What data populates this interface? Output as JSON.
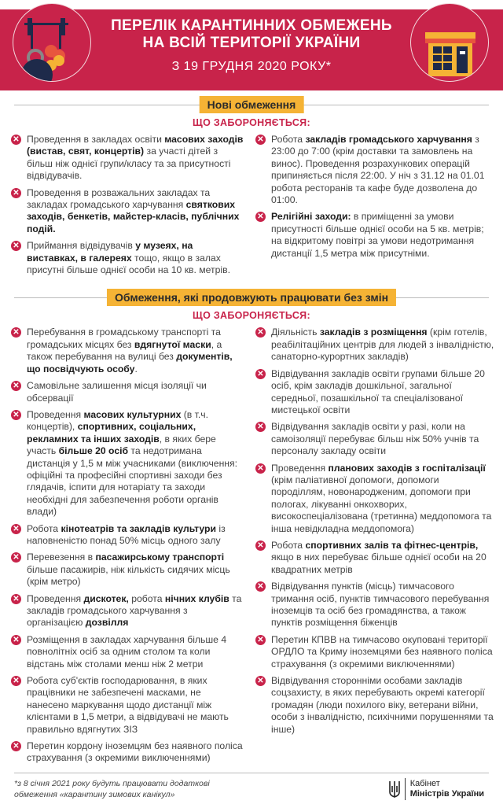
{
  "header": {
    "title_line1": "ПЕРЕЛІК КАРАНТИННИХ ОБМЕЖЕНЬ",
    "title_line2": "НА ВСІЙ ТЕРИТОРІЇ УКРАЇНИ",
    "subtitle": "З 19 ГРУДНЯ 2020 РОКУ*",
    "accent": "#c8234a",
    "highlight": "#f5b335"
  },
  "new_section": {
    "label": "Нові обмеження",
    "sub": "ЩО ЗАБОРОНЯЄТЬСЯ:",
    "left": [
      [
        {
          "t": "Проведення в закладах освіти "
        },
        {
          "t": "масових заходів (вистав, свят, концертів)",
          "b": true
        },
        {
          "t": " за участі дітей з більш ніж однієї групи/класу та за присутності відвідувачів."
        }
      ],
      [
        {
          "t": "Проведення в розважальних закладах та закладах громадського харчування "
        },
        {
          "t": "святкових заходів, бенкетів, майстер-класів, публічних подій.",
          "b": true
        }
      ],
      [
        {
          "t": "Приймання відвідувачів "
        },
        {
          "t": "у музеях, на виставках, в галереях",
          "b": true
        },
        {
          "t": " тощо, якщо в залах присутні більше однієї особи на 10 кв. метрів."
        }
      ]
    ],
    "right": [
      [
        {
          "t": "Робота "
        },
        {
          "t": "закладів громадського харчування",
          "b": true
        },
        {
          "t": " з 23:00 до 7:00 (крім доставки та замовлень на винос). Проведення розрахункових операцій припиняється після 22:00. У ніч з 31.12 на 01.01 робота ресторанів та кафе буде дозволена до 01:00."
        }
      ],
      [
        {
          "t": "Релігійні заходи:",
          "b": true
        },
        {
          "t": " в приміщенні за умови присутності більше однієї особи на 5 кв. метрів; на відкритому повітрі за умови недотримання дистанції 1,5 метра між присутніми."
        }
      ]
    ]
  },
  "ongoing_section": {
    "label": "Обмеження, які продовжують працювати без змін",
    "sub": "ЩО ЗАБОРОНЯЄТЬСЯ:",
    "left": [
      [
        {
          "t": "Перебування в громадському транспорті та громадських місцях без "
        },
        {
          "t": "вдягнутої маски",
          "b": true
        },
        {
          "t": ", а також перебування на вулиці без "
        },
        {
          "t": "документів, що посвідчують особу",
          "b": true
        },
        {
          "t": "."
        }
      ],
      [
        {
          "t": "Самовільне залишення місця ізоляції чи обсервації"
        }
      ],
      [
        {
          "t": "Проведення "
        },
        {
          "t": "масових культурних",
          "b": true
        },
        {
          "t": " (в т.ч. концертів), "
        },
        {
          "t": "спортивних, соціальних, рекламних та інших заходів",
          "b": true
        },
        {
          "t": ", в яких бере участь "
        },
        {
          "t": "більше 20 осіб",
          "b": true
        },
        {
          "t": " та недотримана дистанція у 1,5 м між учасниками (виключення: офіційні та професійні спортивні заходи без глядачів, іспити для нотаріату та заходи необхідні для забезпечення роботи органів влади)"
        }
      ],
      [
        {
          "t": "Робота "
        },
        {
          "t": "кінотеатрів та закладів культури",
          "b": true
        },
        {
          "t": " із наповненістю понад 50% місць одного залу"
        }
      ],
      [
        {
          "t": "Перевезення в "
        },
        {
          "t": "пасажирському транспорті",
          "b": true
        },
        {
          "t": " більше пасажирів, ніж кількість сидячих місць (крім метро)"
        }
      ],
      [
        {
          "t": "Проведення "
        },
        {
          "t": "дискотек,",
          "b": true
        },
        {
          "t": " робота "
        },
        {
          "t": "нічних клубів",
          "b": true
        },
        {
          "t": " та закладів громадського харчування з організацією "
        },
        {
          "t": "дозвілля",
          "b": true
        }
      ],
      [
        {
          "t": "Розміщення в закладах харчування більше 4 повнолітніх осіб за одним столом та коли відстань між столами менш ніж 2 метри"
        }
      ],
      [
        {
          "t": "Робота суб'єктів господарювання, в яких працівники не забезпечені масками, не нанесено маркування щодо дистанції між клієнтами в 1,5 метри, а відвідувачі не мають правильно вдягнутих ЗІЗ"
        }
      ],
      [
        {
          "t": "Перетин кордону іноземцям без наявного поліса страхування (з окремими виключеннями)"
        }
      ]
    ],
    "right": [
      [
        {
          "t": "Діяльність "
        },
        {
          "t": "закладів з розміщення",
          "b": true
        },
        {
          "t": " (крім готелів, реабілітаційних центрів для людей з інвалідністю, санаторно-курортних закладів)"
        }
      ],
      [
        {
          "t": "Відвідування закладів освіти групами більше 20 осіб, крім закладів дошкільної, загальної середньої, позашкільної та спеціалізованої мистецької освіти"
        }
      ],
      [
        {
          "t": "Відвідування закладів освіти у разі, коли на самоізоляції перебуває більш ніж 50% учнів та персоналу закладу освіти"
        }
      ],
      [
        {
          "t": "Проведення "
        },
        {
          "t": "планових заходів з госпіталізації",
          "b": true
        },
        {
          "t": " (крім паліативної допомоги, допомоги породіллям, новонародженим, допомоги при пологах, лікуванні онкохворих, високоспеціалізована (третинна) меддопомога та інша невідкладна меддопомога)"
        }
      ],
      [
        {
          "t": "Робота "
        },
        {
          "t": "спортивних залів та фітнес-центрів,",
          "b": true
        },
        {
          "t": " якщо в них перебуває більше однієї особи на 20 квадратних метрів"
        }
      ],
      [
        {
          "t": "Відвідування пунктів (місць) тимчасового тримання осіб, пунктів тимчасового перебування іноземців та осіб без громадянства, а також пунктів розміщення біженців"
        }
      ],
      [
        {
          "t": "Перетин КПВВ на тимчасово окуповані території ОРДЛО та Криму іноземцями без наявного поліса страхування (з окремими виключеннями)"
        }
      ],
      [
        {
          "t": "Відвідування сторонніми особами закладів соцзахисту, в яких перебувають окремі категорії громадян (люди похилого віку, ветерани війни, особи з інвалідністю, психічними порушеннями та інше)"
        }
      ]
    ]
  },
  "footer": {
    "note_line1": "*з 8 січня 2021 року будуть працювати додаткові",
    "note_line2": "обмеження «карантину зимових канікул»",
    "logo_line1": "Кабінет",
    "logo_line2": "Міністрів України"
  }
}
